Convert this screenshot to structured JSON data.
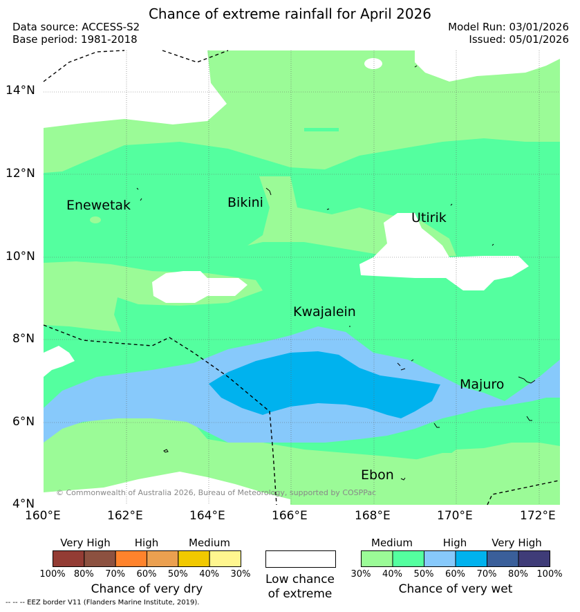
{
  "header": {
    "title": "Chance of extreme rainfall for April 2026",
    "data_source": "Data source: ACCESS-S2",
    "base_period": "Base period: 1981-2018",
    "model_run": "Model Run: 03/01/2026",
    "issued": "Issued: 05/01/2026"
  },
  "map": {
    "lat_labels": [
      "14°N",
      "12°N",
      "10°N",
      "8°N",
      "6°N",
      "4°N"
    ],
    "lon_labels": [
      "160°E",
      "162°E",
      "164°E",
      "166°E",
      "168°E",
      "170°E",
      "172°E"
    ],
    "places": [
      "Enewetak",
      "Bikini",
      "Utirik",
      "Kwajalein",
      "Majuro",
      "Ebon"
    ],
    "copyright": "© Commonwealth of Australia 2026, Bureau of Meteorology, supported by COSPPac",
    "colors": {
      "wet_30_40": "#9bfb97",
      "wet_40_50": "#54ff9f",
      "wet_50_60": "#87c9fb",
      "wet_60_70": "#00b2ee",
      "low": "#ffffff"
    }
  },
  "legend": {
    "dry": {
      "headers": [
        "Very High",
        "High",
        "Medium"
      ],
      "ticks": [
        "100%",
        "80%",
        "70%",
        "60%",
        "50%",
        "40%",
        "30%"
      ],
      "colors": [
        "#933c34",
        "#8c5140",
        "#ff832c",
        "#eba050",
        "#f1c900",
        "#fff68f"
      ],
      "caption": "Chance of very dry"
    },
    "low": {
      "line1": "Low chance",
      "line2": "of extreme"
    },
    "wet": {
      "headers": [
        "Medium",
        "High",
        "Very High"
      ],
      "ticks": [
        "30%",
        "40%",
        "50%",
        "60%",
        "70%",
        "80%",
        "100%"
      ],
      "colors": [
        "#9bfb97",
        "#54ff9f",
        "#87c9fb",
        "#00b2ee",
        "#3a5f9a",
        "#3f3c78"
      ],
      "caption": "Chance of very wet"
    },
    "footnote": "--  --  -- EEZ border V11 (Flanders Marine Institute, 2019)."
  }
}
